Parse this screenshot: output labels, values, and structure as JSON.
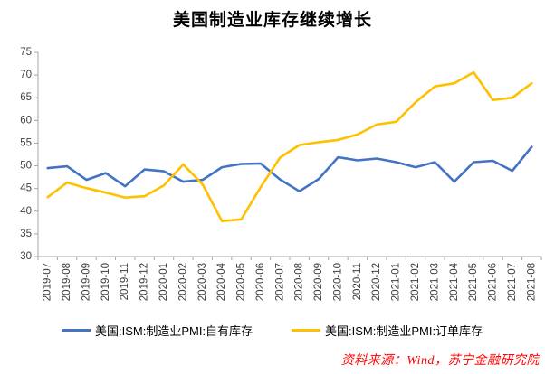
{
  "title": "美国制造业库存继续增长",
  "source": "资料来源：Wind，苏宁金融研究院",
  "colors": {
    "inventory_line": "#4472C4",
    "orders_line": "#FFC000",
    "axis": "#A6A6A6",
    "tick_label": "#3F3F3F",
    "title_text": "#000000",
    "source_text": "#FF0000"
  },
  "legend": [
    {
      "label": "美国:ISM:制造业PMI:自有库存",
      "color": "#4472C4"
    },
    {
      "label": "美国:ISM:制造业PMI:订单库存",
      "color": "#FFC000"
    }
  ],
  "chart_data": {
    "type": "line",
    "title": "美国制造业库存继续增长",
    "xlabel": "",
    "ylabel": "",
    "ylim": [
      30,
      75
    ],
    "ytick_step": 5,
    "grid": false,
    "legend_position": "bottom",
    "categories": [
      "2019-07",
      "2019-08",
      "2019-09",
      "2019-10",
      "2019-11",
      "2019-12",
      "2020-01",
      "2020-02",
      "2020-03",
      "2020-04",
      "2020-05",
      "2020-06",
      "2020-07",
      "2020-08",
      "2020-09",
      "2020-10",
      "2020-11",
      "2020-12",
      "2021-01",
      "2021-02",
      "2021-03",
      "2021-04",
      "2021-05",
      "2021-06",
      "2021-07",
      "2021-08"
    ],
    "series": [
      {
        "name": "美国:ISM:制造业PMI:自有库存",
        "color": "#4472C4",
        "values": [
          49.5,
          49.9,
          46.9,
          48.4,
          45.5,
          49.2,
          48.8,
          46.5,
          46.9,
          49.7,
          50.4,
          50.5,
          47.0,
          44.4,
          47.1,
          51.9,
          51.2,
          51.6,
          50.8,
          49.7,
          50.8,
          46.5,
          50.8,
          51.1,
          48.9,
          54.2
        ]
      },
      {
        "name": "美国:ISM:制造业PMI:订单库存",
        "color": "#FFC000",
        "values": [
          43.1,
          46.3,
          45.1,
          44.1,
          43.0,
          43.3,
          45.7,
          50.3,
          45.9,
          37.8,
          38.2,
          45.3,
          51.8,
          54.6,
          55.2,
          55.7,
          56.9,
          59.1,
          59.7,
          64.0,
          67.5,
          68.2,
          70.6,
          64.5,
          65.0,
          68.2
        ]
      }
    ]
  }
}
